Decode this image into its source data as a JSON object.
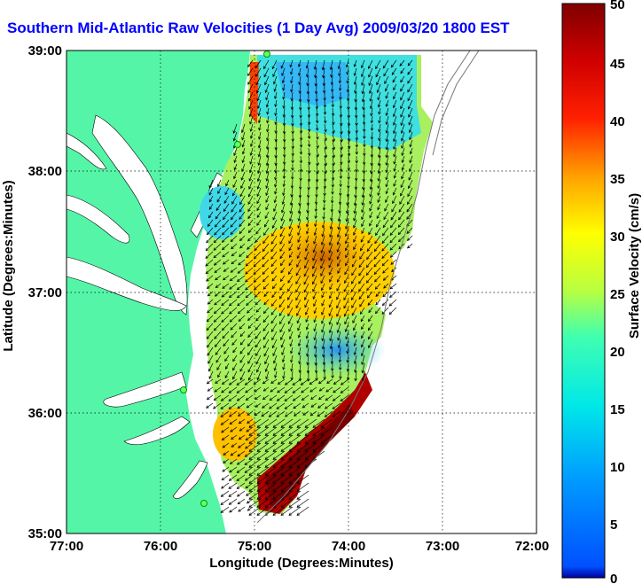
{
  "title": "Southern Mid-Atlantic Raw Velocities (1 Day Avg) 2009/03/20 1800 EST",
  "map": {
    "xlabel": "Longitude (Degrees:Minutes)",
    "ylabel": "Latitude (Degrees:Minutes)",
    "x_ticks": [
      "77:00",
      "76:00",
      "75:00",
      "74:00",
      "73:00",
      "72:00"
    ],
    "y_ticks": [
      "39:00",
      "38:00",
      "37:00",
      "36:00",
      "35:00"
    ],
    "land_color": "#55f5a8",
    "grid": "dotted"
  },
  "colorbar": {
    "label": "Surface Velocity (cm/s)",
    "ticks": [
      "50",
      "45",
      "40",
      "35",
      "30",
      "25",
      "20",
      "15",
      "10",
      "5",
      "0"
    ],
    "range": [
      0,
      50
    ],
    "colormap": "jet"
  }
}
